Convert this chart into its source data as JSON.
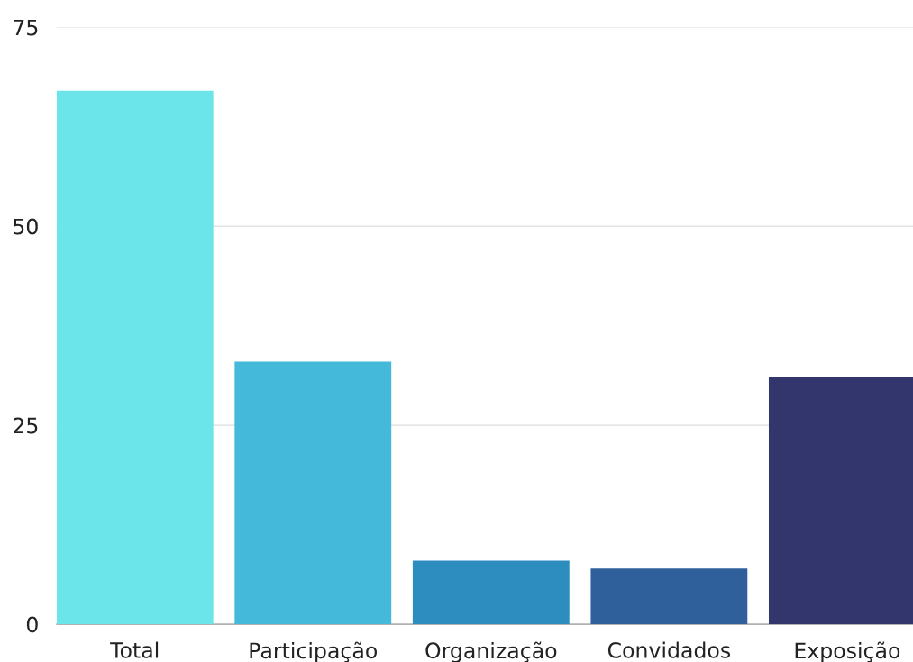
{
  "chart_data": {
    "type": "bar",
    "categories": [
      "Total",
      "Participação",
      "Organização",
      "Convidados",
      "Exposição"
    ],
    "values": [
      67,
      33,
      8,
      7,
      31
    ],
    "colors": [
      "#6ce5ea",
      "#44b9d9",
      "#2e8dbf",
      "#30609c",
      "#33366d"
    ],
    "ylim": [
      0,
      75
    ],
    "yticks": [
      0,
      25,
      50,
      75
    ],
    "grid": "y",
    "legend": false
  }
}
